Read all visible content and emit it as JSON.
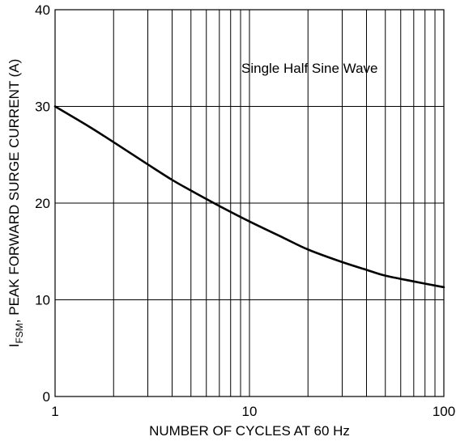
{
  "chart_data": {
    "type": "line",
    "xscale": "log",
    "xlim": [
      1,
      100
    ],
    "ylim": [
      0,
      40
    ],
    "grid": true,
    "xlabel": "NUMBER OF CYCLES AT 60 Hz",
    "ylabel": {
      "prefix": "I",
      "subscript": "FSM",
      "suffix": ", PEAK FORWARD SURGE CURRENT (A)"
    },
    "annotation": "Single Half Sine Wave",
    "x_tick_labels": [
      "1",
      "10",
      "100"
    ],
    "y_tick_labels": [
      "0",
      "10",
      "20",
      "30",
      "40"
    ],
    "x_ticks": [
      1,
      10,
      100
    ],
    "y_ticks": [
      0,
      10,
      20,
      30,
      40
    ],
    "x_minor_gridlines": [
      2,
      3,
      4,
      5,
      6,
      7,
      8,
      9,
      20,
      30,
      40,
      50,
      60,
      70,
      80,
      90
    ],
    "series": [
      {
        "x": [
          1,
          1.5,
          2,
          3,
          4,
          5,
          7,
          10,
          15,
          20,
          30,
          40,
          50,
          70,
          100
        ],
        "y": [
          30,
          27.9,
          26.3,
          24.0,
          22.4,
          21.3,
          19.7,
          18.1,
          16.4,
          15.2,
          13.9,
          13.1,
          12.5,
          11.9,
          11.3
        ],
        "color": "#000000"
      }
    ]
  }
}
